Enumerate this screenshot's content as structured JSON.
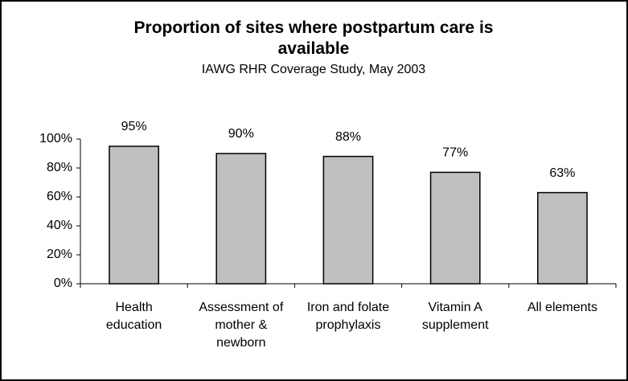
{
  "chart_data": {
    "type": "bar",
    "title": "Proportion of sites where postpartum care is available",
    "subtitle": "IAWG RHR Coverage Study, May 2003",
    "categories": [
      "Health education",
      "Assessment of mother & newborn",
      "Iron and folate prophylaxis",
      "Vitamin A supplement",
      "All elements"
    ],
    "values": [
      95,
      90,
      88,
      77,
      63
    ],
    "value_labels": [
      "95%",
      "90%",
      "88%",
      "77%",
      "63%"
    ],
    "color": "#c0c0c0",
    "ylim": [
      0,
      100
    ],
    "yticks": [
      {
        "value": 0,
        "label": "0%"
      },
      {
        "value": 20,
        "label": "20%"
      },
      {
        "value": 40,
        "label": "40%"
      },
      {
        "value": 60,
        "label": "60%"
      },
      {
        "value": 80,
        "label": "80%"
      },
      {
        "value": 100,
        "label": "100%"
      }
    ],
    "grid": false
  }
}
